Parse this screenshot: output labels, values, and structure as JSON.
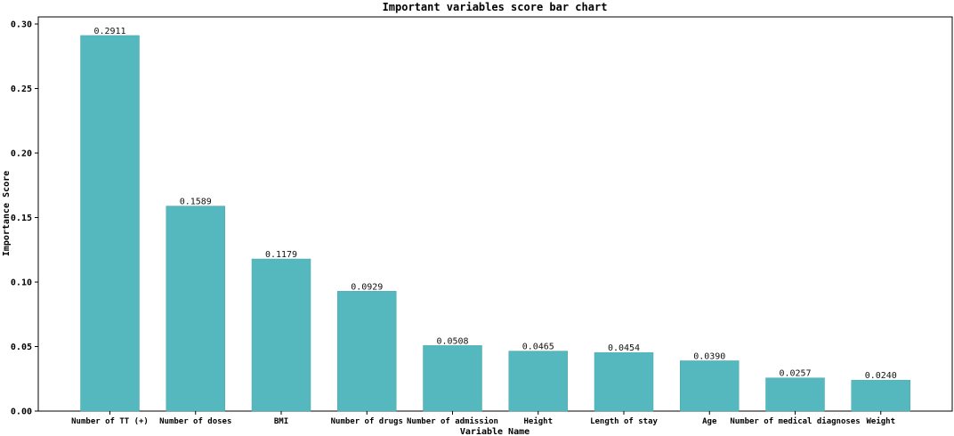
{
  "chart_data": {
    "type": "bar",
    "title": "Important variables score bar chart",
    "xlabel": "Variable Name",
    "ylabel": "Importance Score",
    "categories": [
      "Number of TT (+)",
      "Number of doses",
      "BMI",
      "Number of drugs",
      "Number of admission",
      "Height",
      "Length of stay",
      "Age",
      "Number of medical diagnoses",
      "Weight"
    ],
    "values": [
      0.2911,
      0.1589,
      0.1179,
      0.0929,
      0.0508,
      0.0465,
      0.0454,
      0.039,
      0.0257,
      0.024
    ],
    "data_labels": [
      "0.2911",
      "0.1589",
      "0.1179",
      "0.0929",
      "0.0508",
      "0.0465",
      "0.0454",
      "0.0390",
      "0.0257",
      "0.0240"
    ],
    "y_ticks": [
      0.0,
      0.05,
      0.1,
      0.15,
      0.2,
      0.25,
      0.3
    ],
    "y_tick_labels": [
      "0.00",
      "0.05",
      "0.10",
      "0.15",
      "0.20",
      "0.25",
      "0.30"
    ],
    "ylim": [
      0,
      0.3
    ],
    "grid": false,
    "legend": "none",
    "bar_color": "#56b8bf",
    "bar_edge_color": "#4aa7ae"
  }
}
